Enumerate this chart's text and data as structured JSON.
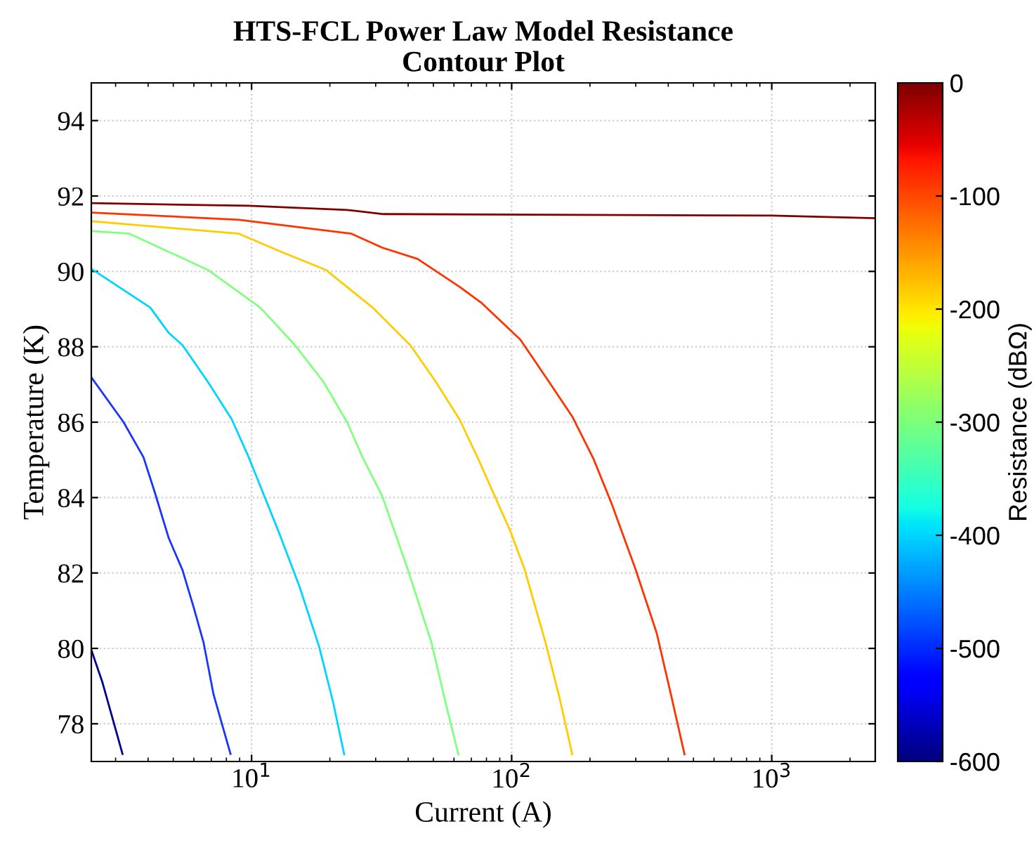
{
  "chart_data": {
    "type": "line",
    "title": "HTS-FCL Power Law Model Resistance\nContour Plot",
    "xlabel": "Current (A)",
    "ylabel": "Temperature (K)",
    "clabel": "Resistance (dBΩ)",
    "log": "x",
    "grid": true,
    "marker": "none",
    "line_style": "solid",
    "xlim": [
      2.42,
      2500
    ],
    "xticks": [
      {
        "value": 10,
        "label": "10$^{1}$"
      },
      {
        "value": 100,
        "label": "10$^{2}$"
      },
      {
        "value": 1000,
        "label": "10$^{3}$"
      }
    ],
    "ylim": [
      77,
      95
    ],
    "yticks": [
      78,
      80,
      82,
      84,
      86,
      88,
      90,
      92,
      94
    ],
    "clim": [
      -600,
      0
    ],
    "cticks": [
      -600,
      -500,
      -400,
      -300,
      -200,
      -100,
      0
    ],
    "series": [
      {
        "color": "#800000",
        "x": [
          2.42,
          9.75,
          23.3,
          32.2,
          1000,
          2500
        ],
        "values": [
          91.81,
          91.74,
          91.63,
          91.52,
          91.48,
          91.41
        ]
      },
      {
        "color": "#ff3300",
        "x": [
          2.42,
          8.94,
          24.2,
          31.8,
          43.5,
          63.1,
          77.0,
          108,
          138,
          171,
          206,
          242,
          299,
          361,
          413,
          462
        ],
        "values": [
          91.56,
          91.37,
          91.0,
          90.63,
          90.33,
          89.59,
          89.15,
          88.19,
          87.11,
          86.15,
          85.04,
          83.85,
          82.11,
          80.41,
          78.67,
          77.19
        ]
      },
      {
        "color": "#ffcc00",
        "x": [
          2.42,
          8.94,
          13.0,
          19.3,
          29.2,
          40.8,
          51.1,
          63.1,
          74.2,
          86.1,
          98.8,
          112,
          135,
          153,
          171
        ],
        "values": [
          91.33,
          91.0,
          90.52,
          90.04,
          89.04,
          88.04,
          87.07,
          86.07,
          85.04,
          84.04,
          83.11,
          82.11,
          80.15,
          78.67,
          77.19
        ]
      },
      {
        "color": "#80ff80",
        "x": [
          2.42,
          3.39,
          4.8,
          6.79,
          10.8,
          14.7,
          18.9,
          23.3,
          26.7,
          31.8,
          39.8,
          49.2,
          55.7,
          62.4
        ],
        "values": [
          91.07,
          91.0,
          90.52,
          90.04,
          89.04,
          88.04,
          87.07,
          86.0,
          85.07,
          84.04,
          82.11,
          80.15,
          78.56,
          77.19
        ]
      },
      {
        "color": "#00d4ff",
        "x": [
          2.42,
          4.08,
          4.8,
          5.43,
          6.79,
          8.4,
          9.75,
          12.7,
          15.3,
          18.2,
          20.6,
          22.7
        ],
        "values": [
          90.07,
          89.04,
          88.37,
          88.04,
          87.07,
          86.07,
          85.07,
          83.1,
          81.63,
          80.04,
          78.56,
          77.19
        ]
      },
      {
        "color": "#1a33ff",
        "x": [
          2.42,
          3.22,
          3.84,
          4.24,
          4.8,
          5.43,
          6.0,
          6.54,
          7.14,
          8.3
        ],
        "values": [
          87.19,
          86.0,
          85.07,
          84.15,
          82.93,
          82.07,
          81.07,
          80.15,
          78.78,
          77.2
        ]
      },
      {
        "color": "#00008f",
        "x": [
          2.42,
          2.67,
          3.19
        ],
        "values": [
          79.96,
          79.1,
          77.2
        ]
      }
    ]
  }
}
